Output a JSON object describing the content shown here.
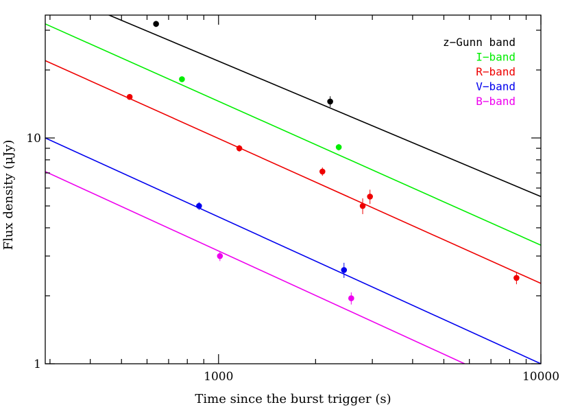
{
  "chart_data": {
    "type": "scatter",
    "title": "",
    "xlabel": "Time since the burst trigger (s)",
    "ylabel": "Flux density (μJy)",
    "xscale": "log",
    "yscale": "log",
    "xlim": [
      290,
      10000
    ],
    "ylim": [
      1,
      35
    ],
    "xticks": [
      {
        "value": 1000,
        "label": "1000"
      },
      {
        "value": 10000,
        "label": "10000"
      }
    ],
    "yticks": [
      {
        "value": 1,
        "label": "1"
      },
      {
        "value": 10,
        "label": "10"
      }
    ],
    "grid": false,
    "legend": {
      "position": "top-right",
      "entries": [
        "z−Gunn band",
        "I−band",
        "R−band",
        "V−band",
        "B−band"
      ]
    },
    "series": [
      {
        "name": "z−Gunn band",
        "color": "#000000",
        "points": [
          {
            "x": 640,
            "y": 32,
            "err": 1.0
          },
          {
            "x": 2220,
            "y": 14.5,
            "err": 0.8
          }
        ],
        "fit": {
          "x": [
            290,
            10000
          ],
          "y": [
            46,
            5.5
          ]
        }
      },
      {
        "name": "I−band",
        "color": "#00ee00",
        "points": [
          {
            "x": 770,
            "y": 18.2,
            "err": 0.5
          },
          {
            "x": 2360,
            "y": 9.1,
            "err": 0.3
          }
        ],
        "fit": {
          "x": [
            290,
            10000
          ],
          "y": [
            32,
            3.35
          ]
        }
      },
      {
        "name": "R−band",
        "color": "#ee0000",
        "points": [
          {
            "x": 530,
            "y": 15.2,
            "err": 0.4
          },
          {
            "x": 1160,
            "y": 9.0,
            "err": 0.3
          },
          {
            "x": 2100,
            "y": 7.1,
            "err": 0.3
          },
          {
            "x": 2800,
            "y": 5.0,
            "err": 0.4
          },
          {
            "x": 2950,
            "y": 5.5,
            "err": 0.4
          },
          {
            "x": 8400,
            "y": 2.4,
            "err": 0.15
          }
        ],
        "fit": {
          "x": [
            290,
            10000
          ],
          "y": [
            22,
            2.27
          ]
        }
      },
      {
        "name": "V−band",
        "color": "#0000ee",
        "points": [
          {
            "x": 870,
            "y": 5.0,
            "err": 0.2
          },
          {
            "x": 2450,
            "y": 2.6,
            "err": 0.2
          }
        ],
        "fit": {
          "x": [
            290,
            10000
          ],
          "y": [
            10,
            1.0
          ]
        }
      },
      {
        "name": "B−band",
        "color": "#ee00ee",
        "points": [
          {
            "x": 1010,
            "y": 3.0,
            "err": 0.15
          },
          {
            "x": 2580,
            "y": 1.95,
            "err": 0.12
          }
        ],
        "fit": {
          "x": [
            290,
            5800
          ],
          "y": [
            7.1,
            1.0
          ]
        }
      }
    ]
  }
}
